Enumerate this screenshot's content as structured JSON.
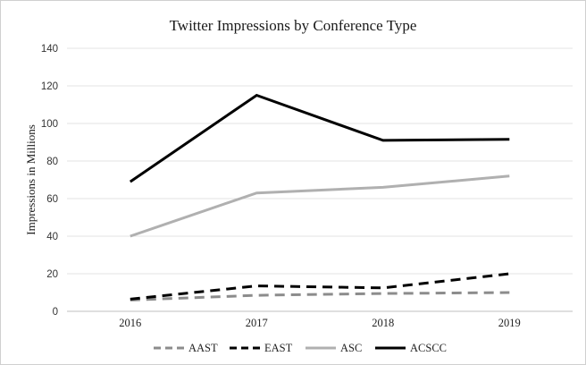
{
  "chart_data": {
    "type": "line",
    "title": "Twitter Impressions by Conference Type",
    "xlabel": "",
    "ylabel": "Impressions in Millions",
    "categories": [
      "2016",
      "2017",
      "2018",
      "2019"
    ],
    "ylim": [
      0,
      140
    ],
    "yticks": [
      0,
      20,
      40,
      60,
      80,
      100,
      120,
      140
    ],
    "grid": true,
    "legend_position": "bottom",
    "series": [
      {
        "name": "AAST",
        "values": [
          6,
          8.5,
          9.5,
          10
        ],
        "color": "#8c8c8c",
        "style": "dashed"
      },
      {
        "name": "EAST",
        "values": [
          6.5,
          13.5,
          12.5,
          20
        ],
        "color": "#000000",
        "style": "dashed"
      },
      {
        "name": "ASC",
        "values": [
          40,
          63,
          66,
          72
        ],
        "color": "#b0b0b0",
        "style": "solid"
      },
      {
        "name": "ACSCC",
        "values": [
          69,
          115,
          91,
          91.5
        ],
        "color": "#000000",
        "style": "solid"
      }
    ]
  }
}
